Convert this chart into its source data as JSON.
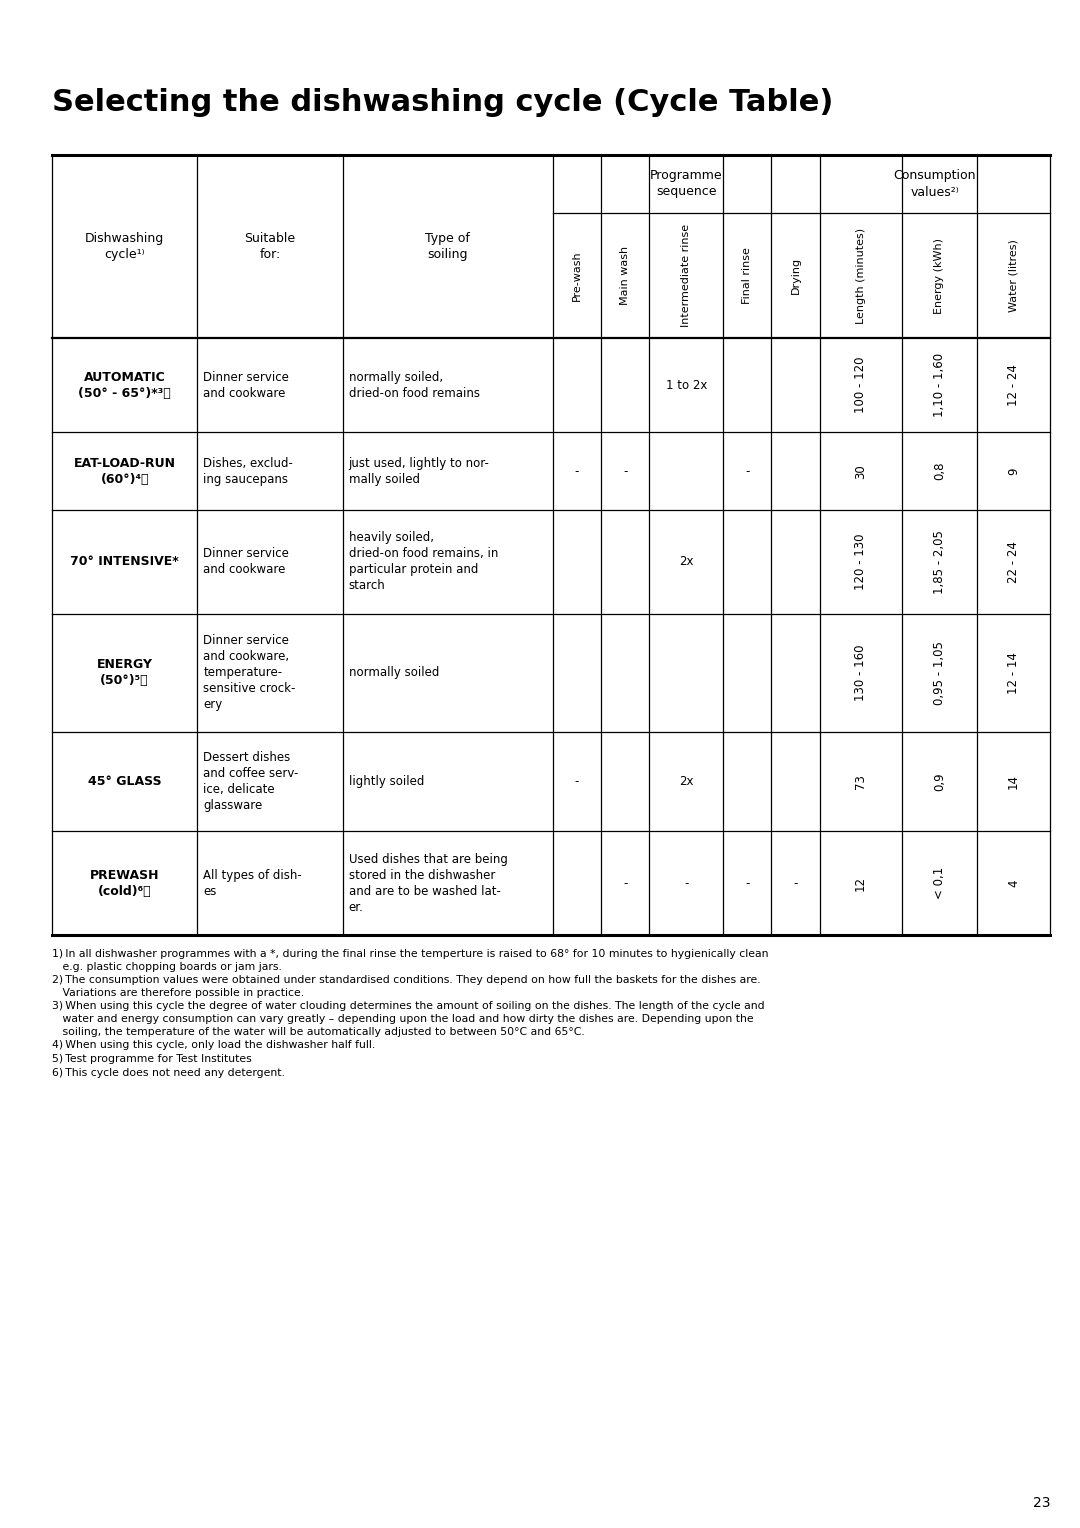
{
  "title": "Selecting the dishwashing cycle (Cycle Table)",
  "page_number": "23",
  "rows": [
    {
      "cycle": "AUTOMATIC\n(50° - 65°)*³⧠",
      "cycle_plain": "AUTOMATIC\n(50° - 65°)*",
      "cycle_sup": "3)",
      "suitable": "Dinner service\nand cookware",
      "soiling": "normally soiled,\ndried-on food remains",
      "prewash": "",
      "mainwash": "",
      "intrinse": "1 to 2x",
      "finalrinse": "",
      "drying": "",
      "length": "100 - 120",
      "energy": "1,10 - 1,60",
      "water": "12 - 24"
    },
    {
      "cycle": "EAT-LOAD-RUN\n(60°)⁴⧠",
      "cycle_plain": "EAT-LOAD-RUN\n(60°)",
      "cycle_sup": "4)",
      "suitable": "Dishes, exclud-\ning saucepans",
      "soiling": "just used, lightly to nor-\nmally soiled",
      "prewash": "-",
      "mainwash": "-",
      "intrinse": "",
      "finalrinse": "-",
      "drying": "",
      "length": "30",
      "energy": "0,8",
      "water": "9"
    },
    {
      "cycle": "70° INTENSIVE*",
      "cycle_plain": "70° INTENSIVE*",
      "cycle_sup": "",
      "suitable": "Dinner service\nand cookware",
      "soiling": "heavily soiled,\ndried-on food remains, in\nparticular protein and\nstarch",
      "prewash": "",
      "mainwash": "",
      "intrinse": "2x",
      "finalrinse": "",
      "drying": "",
      "length": "120 - 130",
      "energy": "1,85 - 2,05",
      "water": "22 - 24"
    },
    {
      "cycle": "ENERGY\n(50°)⁵⧠",
      "cycle_plain": "ENERGY\n(50°)",
      "cycle_sup": "5)",
      "suitable": "Dinner service\nand cookware,\ntemperature-\nsensitive crock-\nery",
      "soiling": "normally soiled",
      "prewash": "",
      "mainwash": "",
      "intrinse": "",
      "finalrinse": "",
      "drying": "",
      "length": "130 - 160",
      "energy": "0,95 - 1,05",
      "water": "12 - 14"
    },
    {
      "cycle": "45° GLASS",
      "cycle_plain": "45° GLASS",
      "cycle_sup": "",
      "suitable": "Dessert dishes\nand coffee serv-\nice, delicate\nglassware",
      "soiling": "lightly soiled",
      "prewash": "-",
      "mainwash": "",
      "intrinse": "2x",
      "finalrinse": "",
      "drying": "",
      "length": "73",
      "energy": "0,9",
      "water": "14"
    },
    {
      "cycle": "PREWASH\n(cold)⁶⧠",
      "cycle_plain": "PREWASH\n(cold)",
      "cycle_sup": "6)",
      "suitable": "All types of dish-\nes",
      "soiling": "Used dishes that are being\nstored in the dishwasher\nand are to be washed lat-\ner.",
      "prewash": "",
      "mainwash": "-",
      "intrinse": "-",
      "finalrinse": "-",
      "drying": "-",
      "length": "12",
      "energy": "< 0,1",
      "water": "4"
    }
  ],
  "footnotes": [
    "1) In all dishwasher programmes with a *, during the final rinse the temperture is raised to 68° for 10 minutes to hygienically clean\n   e.g. plastic chopping boards or jam jars.",
    "2) The consumption values were obtained under standardised conditions. They depend on how full the baskets for the dishes are.\n   Variations are therefore possible in practice.",
    "3) When using this cycle the degree of water clouding determines the amount of soiling on the dishes. The length of the cycle and\n   water and energy consumption can vary greatly – depending upon the load and how dirty the dishes are. Depending upon the\n   soiling, the temperature of the water will be automatically adjusted to between 50°C and 65°C.",
    "4) When using this cycle, only load the dishwasher half full.",
    "5) Test programme for Test Institutes",
    "6) This cycle does not need any detergent."
  ],
  "background_color": "#ffffff",
  "text_color": "#000000"
}
